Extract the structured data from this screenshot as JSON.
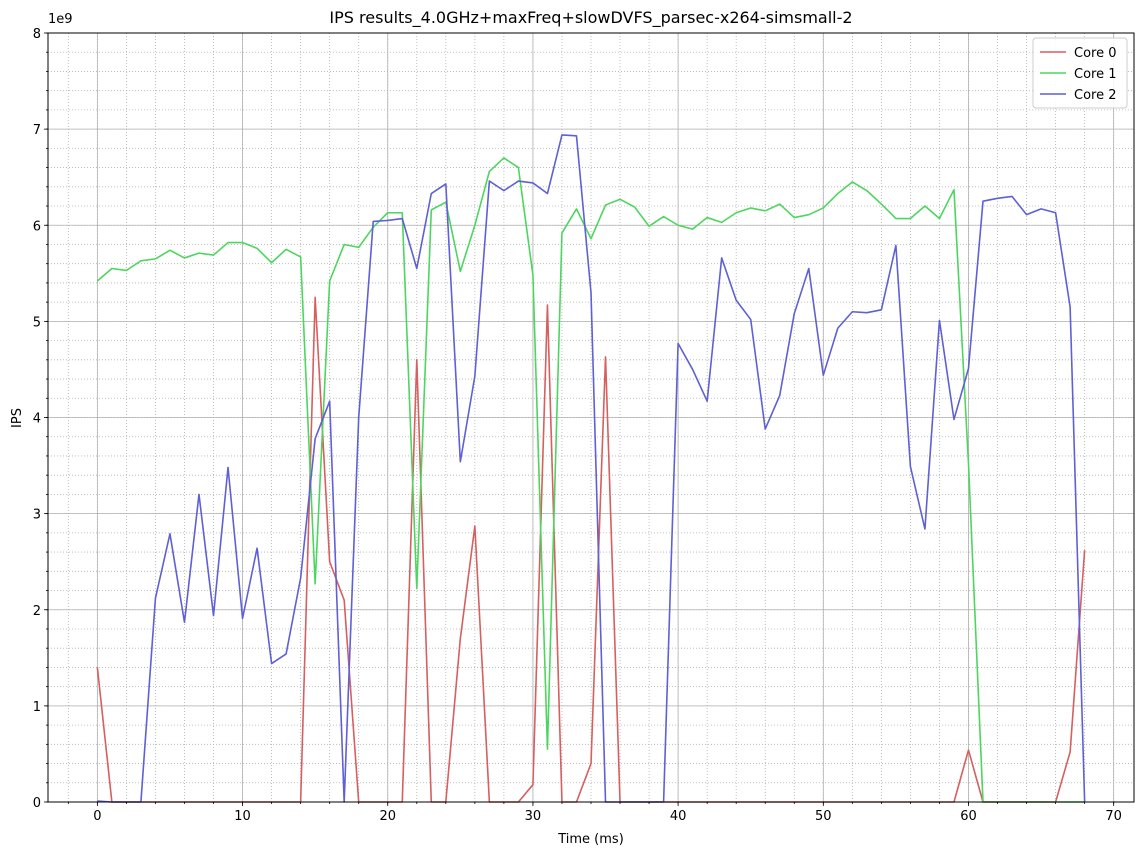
{
  "chart_data": {
    "type": "line",
    "title": "IPS results_4.0GHz+maxFreq+slowDVFS_parsec-x264-simsmall-2",
    "xlabel": "Time (ms)",
    "ylabel": "IPS",
    "y_multiplier_label": "1e9",
    "xlim": [
      -3.4,
      71.4
    ],
    "ylim": [
      0,
      8
    ],
    "x_ticks": [
      0,
      10,
      20,
      30,
      40,
      50,
      60,
      70
    ],
    "y_ticks": [
      0,
      1,
      2,
      3,
      4,
      5,
      6,
      7,
      8
    ],
    "x_minor_step": 2,
    "y_minor_step": 0.2,
    "grid": true,
    "legend_position": "top-right",
    "series": [
      {
        "name": "Core 0",
        "color": "#d65f5f",
        "points": [
          [
            0,
            1.4
          ],
          [
            1,
            0
          ],
          [
            2,
            0
          ],
          [
            3,
            0
          ],
          [
            4,
            0
          ],
          [
            5,
            0
          ],
          [
            6,
            0
          ],
          [
            7,
            0
          ],
          [
            8,
            0
          ],
          [
            9,
            0
          ],
          [
            10,
            0
          ],
          [
            11,
            0
          ],
          [
            12,
            0
          ],
          [
            13,
            0
          ],
          [
            14,
            0
          ],
          [
            15,
            5.25
          ],
          [
            16,
            2.5
          ],
          [
            17,
            2.1
          ],
          [
            18,
            0
          ],
          [
            19,
            0
          ],
          [
            20,
            0
          ],
          [
            21,
            0
          ],
          [
            22,
            4.6
          ],
          [
            23,
            0
          ],
          [
            24,
            0
          ],
          [
            25,
            1.7
          ],
          [
            26,
            2.87
          ],
          [
            27,
            0
          ],
          [
            28,
            0
          ],
          [
            29,
            0
          ],
          [
            30,
            0.18
          ],
          [
            31,
            5.17
          ],
          [
            32,
            0
          ],
          [
            33,
            0
          ],
          [
            34,
            0.4
          ],
          [
            35,
            4.63
          ],
          [
            36,
            0
          ],
          [
            37,
            0
          ],
          [
            38,
            0
          ],
          [
            39,
            0
          ],
          [
            40,
            0
          ],
          [
            41,
            0
          ],
          [
            42,
            0
          ],
          [
            43,
            0
          ],
          [
            44,
            0
          ],
          [
            45,
            0
          ],
          [
            46,
            0
          ],
          [
            47,
            0
          ],
          [
            48,
            0
          ],
          [
            49,
            0
          ],
          [
            50,
            0
          ],
          [
            51,
            0
          ],
          [
            52,
            0
          ],
          [
            53,
            0
          ],
          [
            54,
            0
          ],
          [
            55,
            0
          ],
          [
            56,
            0
          ],
          [
            57,
            0
          ],
          [
            58,
            0
          ],
          [
            59,
            0
          ],
          [
            60,
            0.54
          ],
          [
            61,
            0
          ],
          [
            62,
            0
          ],
          [
            63,
            0
          ],
          [
            64,
            0
          ],
          [
            65,
            0
          ],
          [
            66,
            0
          ],
          [
            67,
            0.52
          ],
          [
            68,
            2.62
          ]
        ]
      },
      {
        "name": "Core 1",
        "color": "#4dd65f",
        "points": [
          [
            0,
            5.42
          ],
          [
            1,
            5.55
          ],
          [
            2,
            5.53
          ],
          [
            3,
            5.63
          ],
          [
            4,
            5.65
          ],
          [
            5,
            5.74
          ],
          [
            6,
            5.66
          ],
          [
            7,
            5.71
          ],
          [
            8,
            5.69
          ],
          [
            9,
            5.82
          ],
          [
            10,
            5.82
          ],
          [
            11,
            5.76
          ],
          [
            12,
            5.61
          ],
          [
            13,
            5.75
          ],
          [
            14,
            5.67
          ],
          [
            15,
            2.27
          ],
          [
            16,
            5.42
          ],
          [
            17,
            5.8
          ],
          [
            18,
            5.77
          ],
          [
            19,
            5.98
          ],
          [
            20,
            6.13
          ],
          [
            21,
            6.13
          ],
          [
            22,
            2.22
          ],
          [
            23,
            6.16
          ],
          [
            24,
            6.24
          ],
          [
            25,
            5.52
          ],
          [
            26,
            6.0
          ],
          [
            27,
            6.56
          ],
          [
            28,
            6.7
          ],
          [
            29,
            6.6
          ],
          [
            30,
            5.48
          ],
          [
            31,
            0.55
          ],
          [
            32,
            5.92
          ],
          [
            33,
            6.17
          ],
          [
            34,
            5.86
          ],
          [
            35,
            6.21
          ],
          [
            36,
            6.27
          ],
          [
            37,
            6.19
          ],
          [
            38,
            5.99
          ],
          [
            39,
            6.09
          ],
          [
            40,
            6.0
          ],
          [
            41,
            5.96
          ],
          [
            42,
            6.08
          ],
          [
            43,
            6.03
          ],
          [
            44,
            6.13
          ],
          [
            45,
            6.18
          ],
          [
            46,
            6.15
          ],
          [
            47,
            6.22
          ],
          [
            48,
            6.08
          ],
          [
            49,
            6.11
          ],
          [
            50,
            6.18
          ],
          [
            51,
            6.33
          ],
          [
            52,
            6.45
          ],
          [
            53,
            6.36
          ],
          [
            54,
            6.22
          ],
          [
            55,
            6.07
          ],
          [
            56,
            6.07
          ],
          [
            57,
            6.2
          ],
          [
            58,
            6.07
          ],
          [
            59,
            6.37
          ],
          [
            60,
            3.52
          ],
          [
            61,
            0
          ],
          [
            62,
            0
          ],
          [
            63,
            0
          ],
          [
            64,
            0
          ],
          [
            65,
            0
          ],
          [
            66,
            0
          ],
          [
            67,
            0
          ],
          [
            68,
            0
          ]
        ]
      },
      {
        "name": "Core 2",
        "color": "#5f5fd6",
        "points": [
          [
            0,
            0.01
          ],
          [
            1,
            0
          ],
          [
            2,
            0
          ],
          [
            3,
            0
          ],
          [
            4,
            2.12
          ],
          [
            5,
            2.79
          ],
          [
            6,
            1.87
          ],
          [
            7,
            3.2
          ],
          [
            8,
            1.94
          ],
          [
            9,
            3.48
          ],
          [
            10,
            1.91
          ],
          [
            11,
            2.64
          ],
          [
            12,
            1.44
          ],
          [
            13,
            1.54
          ],
          [
            14,
            2.33
          ],
          [
            15,
            3.78
          ],
          [
            16,
            4.17
          ],
          [
            17,
            0
          ],
          [
            18,
            4.0
          ],
          [
            19,
            6.04
          ],
          [
            20,
            6.05
          ],
          [
            21,
            6.07
          ],
          [
            22,
            5.55
          ],
          [
            23,
            6.33
          ],
          [
            24,
            6.43
          ],
          [
            25,
            3.54
          ],
          [
            26,
            4.43
          ],
          [
            27,
            6.46
          ],
          [
            28,
            6.36
          ],
          [
            29,
            6.46
          ],
          [
            30,
            6.44
          ],
          [
            31,
            6.33
          ],
          [
            32,
            6.94
          ],
          [
            33,
            6.93
          ],
          [
            34,
            5.3
          ],
          [
            35,
            0
          ],
          [
            36,
            0
          ],
          [
            37,
            0
          ],
          [
            38,
            0
          ],
          [
            39,
            0
          ],
          [
            40,
            4.77
          ],
          [
            41,
            4.5
          ],
          [
            42,
            4.17
          ],
          [
            43,
            5.66
          ],
          [
            44,
            5.22
          ],
          [
            45,
            5.02
          ],
          [
            46,
            3.88
          ],
          [
            47,
            4.23
          ],
          [
            48,
            5.08
          ],
          [
            49,
            5.55
          ],
          [
            50,
            4.44
          ],
          [
            51,
            4.93
          ],
          [
            52,
            5.1
          ],
          [
            53,
            5.09
          ],
          [
            54,
            5.12
          ],
          [
            55,
            5.79
          ],
          [
            56,
            3.49
          ],
          [
            57,
            2.84
          ],
          [
            58,
            5.01
          ],
          [
            59,
            3.98
          ],
          [
            60,
            4.51
          ],
          [
            61,
            6.25
          ],
          [
            62,
            6.28
          ],
          [
            63,
            6.3
          ],
          [
            64,
            6.11
          ],
          [
            65,
            6.17
          ],
          [
            66,
            6.13
          ],
          [
            67,
            5.15
          ],
          [
            68,
            0
          ]
        ]
      }
    ]
  }
}
